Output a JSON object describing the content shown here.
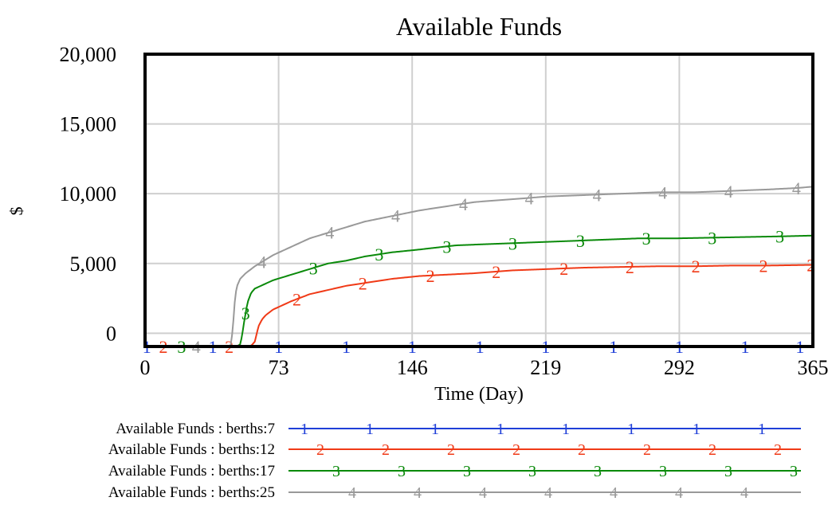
{
  "chart_data": {
    "type": "line",
    "title": "Available Funds",
    "xlabel": "Time (Day)",
    "ylabel": "$",
    "xlim": [
      0,
      365
    ],
    "ylim": [
      -950,
      20000
    ],
    "x_ticks": [
      0,
      73,
      146,
      219,
      292,
      365
    ],
    "x_tick_labels": [
      "0",
      "73",
      "146",
      "219",
      "292",
      "365"
    ],
    "y_ticks": [
      0,
      5000,
      10000,
      15000,
      20000
    ],
    "y_tick_labels": [
      "0",
      "5,000",
      "10,000",
      "15,000",
      "20,000"
    ],
    "grid": true,
    "legend_placement": "bottom",
    "series": [
      {
        "name": "Available Funds : berths:7",
        "marker": "1",
        "color": "#1f3fd8",
        "x": [
          0,
          365
        ],
        "y": [
          -950,
          -950
        ],
        "marker_x": [
          1,
          37,
          73,
          110,
          146,
          183,
          219,
          256,
          292,
          328,
          358
        ]
      },
      {
        "name": "Available Funds : berths:12",
        "marker": "2",
        "color": "#f03a17",
        "x": [
          0,
          55,
          58,
          60,
          62,
          64,
          66,
          70,
          75,
          80,
          90,
          100,
          110,
          120,
          135,
          150,
          165,
          180,
          200,
          220,
          240,
          260,
          280,
          300,
          320,
          340,
          365
        ],
        "y": [
          -950,
          -950,
          -900,
          -600,
          500,
          1000,
          1300,
          1700,
          2000,
          2300,
          2800,
          3100,
          3400,
          3600,
          3900,
          4100,
          4200,
          4300,
          4500,
          4600,
          4700,
          4750,
          4800,
          4800,
          4850,
          4850,
          4900
        ],
        "marker_x": [
          10,
          46,
          83,
          119,
          156,
          192,
          229,
          265,
          301,
          338,
          364
        ]
      },
      {
        "name": "Available Funds : berths:17",
        "marker": "3",
        "color": "#0a8a0a",
        "x": [
          0,
          50,
          52,
          53,
          54,
          56,
          58,
          60,
          65,
          70,
          80,
          90,
          100,
          110,
          120,
          135,
          150,
          170,
          190,
          210,
          230,
          250,
          270,
          290,
          310,
          330,
          350,
          365
        ],
        "y": [
          -950,
          -950,
          -800,
          -200,
          700,
          2200,
          2900,
          3200,
          3500,
          3800,
          4200,
          4600,
          5000,
          5200,
          5500,
          5800,
          6000,
          6300,
          6400,
          6500,
          6600,
          6700,
          6800,
          6800,
          6850,
          6900,
          6950,
          7000
        ],
        "marker_x": [
          20,
          55,
          92,
          128,
          165,
          201,
          238,
          274,
          310,
          347
        ]
      },
      {
        "name": "Available Funds : berths:25",
        "marker": "4",
        "color": "#999999",
        "x": [
          0,
          46,
          47,
          48,
          49,
          50,
          52,
          55,
          60,
          65,
          70,
          80,
          90,
          100,
          110,
          120,
          135,
          150,
          165,
          180,
          200,
          220,
          240,
          260,
          280,
          300,
          320,
          340,
          355,
          365
        ],
        "y": [
          -950,
          -950,
          -800,
          400,
          2200,
          3300,
          3900,
          4300,
          4800,
          5200,
          5600,
          6200,
          6800,
          7200,
          7600,
          8000,
          8400,
          8800,
          9100,
          9400,
          9600,
          9800,
          9900,
          10000,
          10100,
          10100,
          10200,
          10300,
          10400,
          10500
        ],
        "marker_x": [
          28,
          64,
          101,
          137,
          174,
          210,
          247,
          283,
          319,
          356
        ]
      }
    ]
  }
}
